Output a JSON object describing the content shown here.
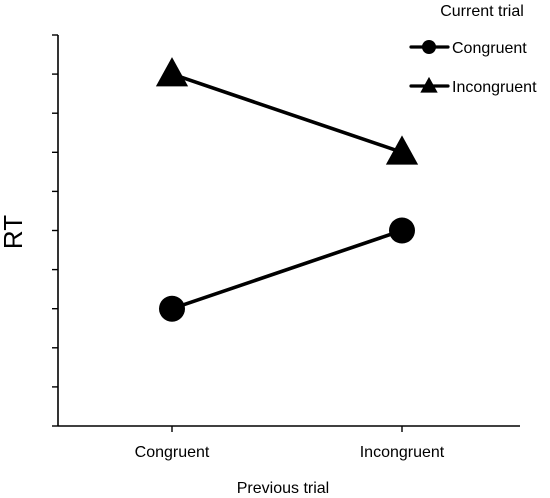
{
  "chart_data": {
    "type": "line",
    "title": "",
    "xlabel": "Previous trial",
    "ylabel": "RT",
    "categories": [
      "Congruent",
      "Incongruent"
    ],
    "ylim": [
      0,
      10
    ],
    "series": [
      {
        "name": "Congruent",
        "marker": "circle",
        "values": [
          3,
          5
        ]
      },
      {
        "name": "Incongruent",
        "marker": "triangle",
        "values": [
          9,
          7
        ]
      }
    ],
    "legend": {
      "title": "Current trial",
      "position": "top-right"
    },
    "grid": false,
    "colors": {
      "line": "#000000",
      "axis": "#000000"
    }
  }
}
